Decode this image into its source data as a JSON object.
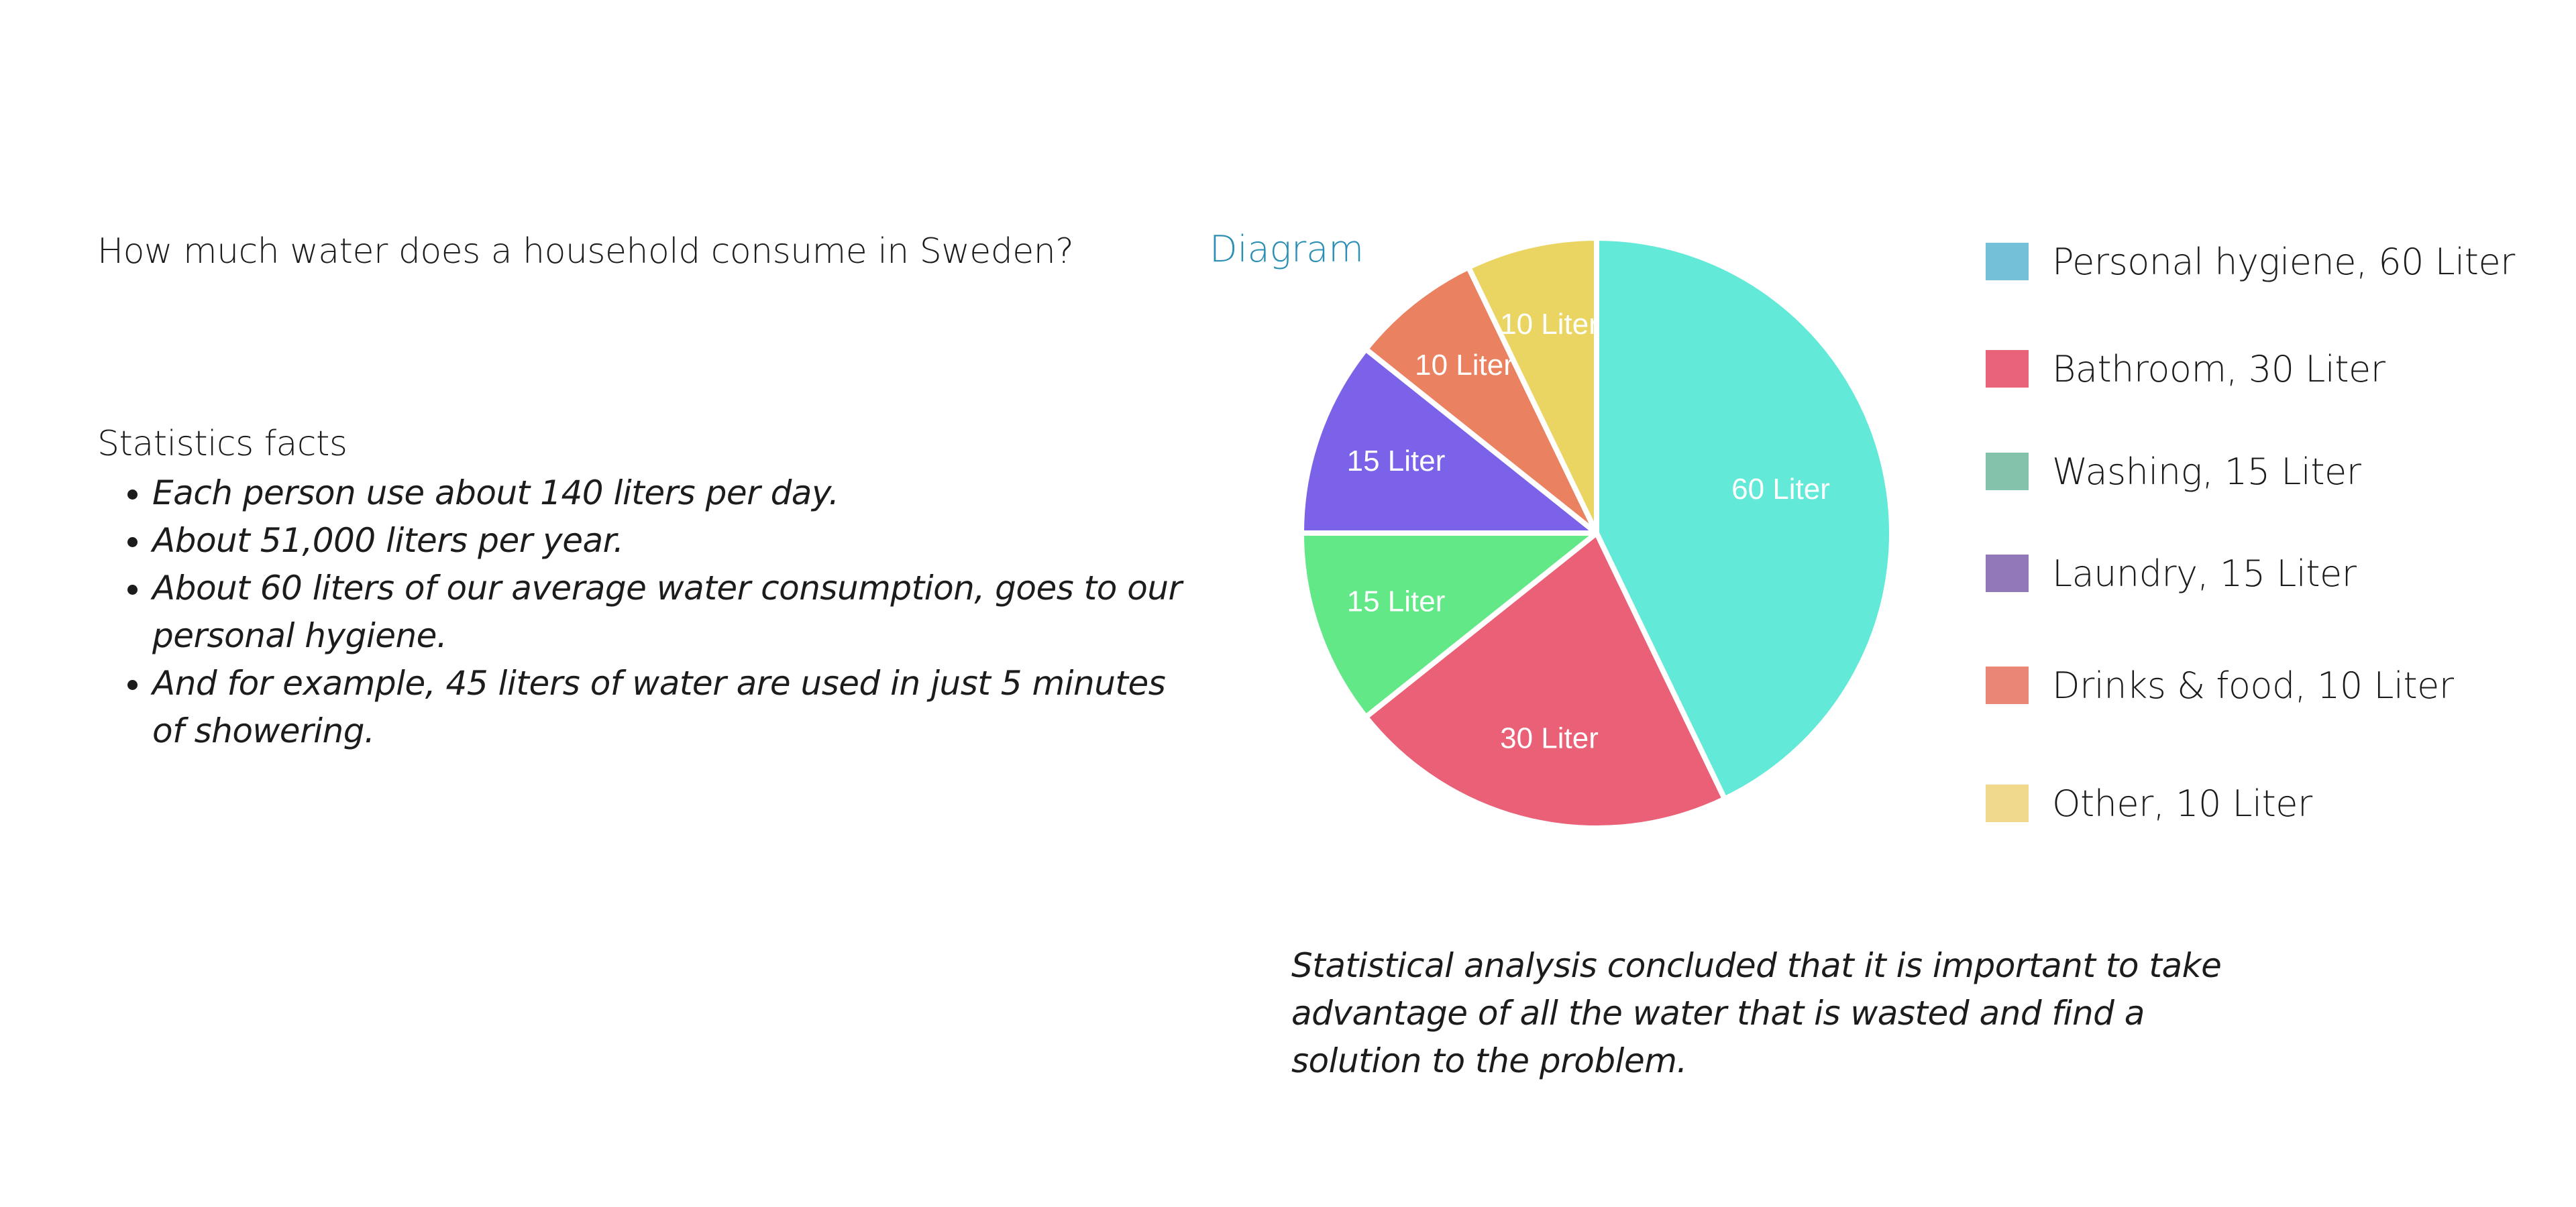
{
  "question": "How much water does a household consume in Sweden?",
  "facts": {
    "title": "Statistics facts",
    "items": [
      "Each person use about  140 liters per day.",
      "About 51,000 liters per year.",
      "About 60 liters of our average water consumption, goes to our personal hygiene.",
      "And for example, 45 liters of water are used in just 5 minutes of showering."
    ]
  },
  "diagram_label": "Diagram",
  "chart_data": {
    "type": "pie",
    "title": "",
    "start_angle_deg": 0,
    "direction": "clockwise",
    "slices": [
      {
        "value": 60,
        "label": "60 Liter",
        "color": "#62e9d8"
      },
      {
        "value": 30,
        "label": "30 Liter",
        "color": "#ea6076"
      },
      {
        "value": 15,
        "label": "15 Liter",
        "color": "#63e887"
      },
      {
        "value": 15,
        "label": "15 Liter",
        "color": "#7b62e8"
      },
      {
        "value": 10,
        "label": "10 Liter",
        "color": "#ea8262"
      },
      {
        "value": 10,
        "label": "10 Liter",
        "color": "#ead562"
      }
    ],
    "legend": {
      "placement": "right",
      "entries": [
        {
          "label": "Personal hygiene, 60 Liter",
          "color": "#74c0d8"
        },
        {
          "label": "Bathroom, 30 Liter",
          "color": "#e8637a"
        },
        {
          "label": "Washing, 15 Liter",
          "color": "#84c2ab"
        },
        {
          "label": "Laundry, 15 Liter",
          "color": "#9079b6"
        },
        {
          "label": "Drinks & food, 10 Liter",
          "color": "#e98676"
        },
        {
          "label": "Other, 10 Liter",
          "color": "#f0d98a"
        }
      ]
    }
  },
  "conclusion": "Statistical analysis concluded that it is important to take advantage of all the water that is wasted and find a solution to the problem."
}
